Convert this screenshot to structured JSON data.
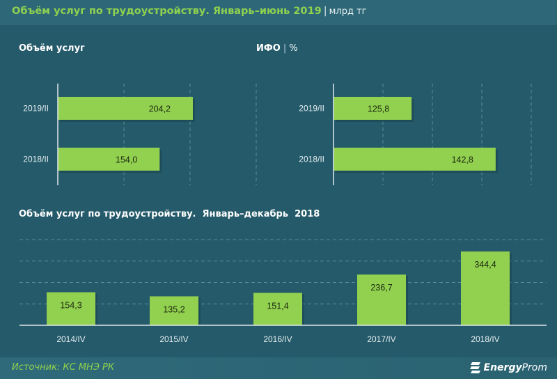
{
  "header": {
    "title": "Объём услуг по трудоустройству. Январь–июнь 2019",
    "separator": "|",
    "unit": "млрд тг"
  },
  "footer": {
    "source": "Источник: КС МНЭ РК",
    "brand_bold": "Energy",
    "brand_light": "Prom",
    "brand_icon": "energyprom-logo-icon"
  },
  "colors": {
    "background": "#245a6a",
    "header": "#2e6878",
    "bar": "#92d050",
    "title": "#8fd14f"
  },
  "chart_data": [
    {
      "type": "bar",
      "orientation": "horizontal",
      "title": "Объём услуг",
      "categories": [
        "2019/II",
        "2018/II"
      ],
      "values": [
        204.2,
        154.0
      ],
      "labels": [
        "204,2",
        "154,0"
      ],
      "xlim": [
        0,
        300
      ],
      "grid_step": 100
    },
    {
      "type": "bar",
      "orientation": "horizontal",
      "title": "ИФО",
      "title_sep": "|",
      "title_unit": "%",
      "categories": [
        "2019/II",
        "2018/II"
      ],
      "values": [
        125.8,
        142.8
      ],
      "labels": [
        "125,8",
        "142,8"
      ],
      "xlim": [
        110,
        150
      ],
      "grid_step": 10
    },
    {
      "type": "bar",
      "orientation": "vertical",
      "title": "Объём услуг по трудоустройству.  Январь–декабрь  2018",
      "categories": [
        "2014/IV",
        "2015/IV",
        "2016/IV",
        "2017/IV",
        "2018/IV"
      ],
      "values": [
        154.3,
        135.2,
        151.4,
        236.7,
        344.4
      ],
      "labels": [
        "154,3",
        "135,2",
        "151,4",
        "236,7",
        "344,4"
      ],
      "ylim": [
        0,
        400
      ],
      "grid_step": 100
    }
  ]
}
